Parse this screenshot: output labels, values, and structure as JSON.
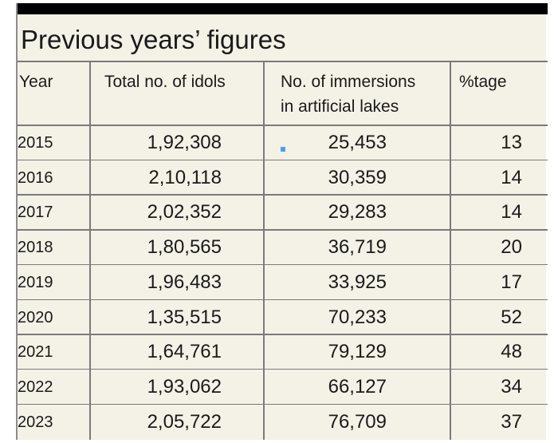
{
  "title": "Previous years’ figures",
  "chart_data": {
    "type": "table",
    "title": "Previous years’ figures",
    "columns": [
      "Year",
      "Total no. of idols",
      "No. of immersions in artificial lakes",
      "%tage"
    ],
    "rows": [
      {
        "year": "2015",
        "total": "1,92,308",
        "immersions": "25,453",
        "pct": "13"
      },
      {
        "year": "2016",
        "total": "2,10,118",
        "immersions": "30,359",
        "pct": "14"
      },
      {
        "year": "2017",
        "total": "2,02,352",
        "immersions": "29,283",
        "pct": "14"
      },
      {
        "year": "2018",
        "total": "1,80,565",
        "immersions": "36,719",
        "pct": "20"
      },
      {
        "year": "2019",
        "total": "1,96,483",
        "immersions": "33,925",
        "pct": "17"
      },
      {
        "year": "2020",
        "total": "1,35,515",
        "immersions": "70,233",
        "pct": "52"
      },
      {
        "year": "2021",
        "total": "1,64,761",
        "immersions": "79,129",
        "pct": "48"
      },
      {
        "year": "2022",
        "total": "1,93,062",
        "immersions": "66,127",
        "pct": "34"
      },
      {
        "year": "2023",
        "total": "2,05,722",
        "immersions": "76,709",
        "pct": "37"
      }
    ]
  },
  "header": {
    "year": "Year",
    "total": "Total no. of idols",
    "immersions_line1": "No. of immersions",
    "immersions_line2": "in artificial lakes",
    "pct": "%tage"
  },
  "colors": {
    "background": "#f4f1e6",
    "top_bar": "#000000",
    "rule": "#7a7a7a",
    "text": "#1a1a1a"
  }
}
